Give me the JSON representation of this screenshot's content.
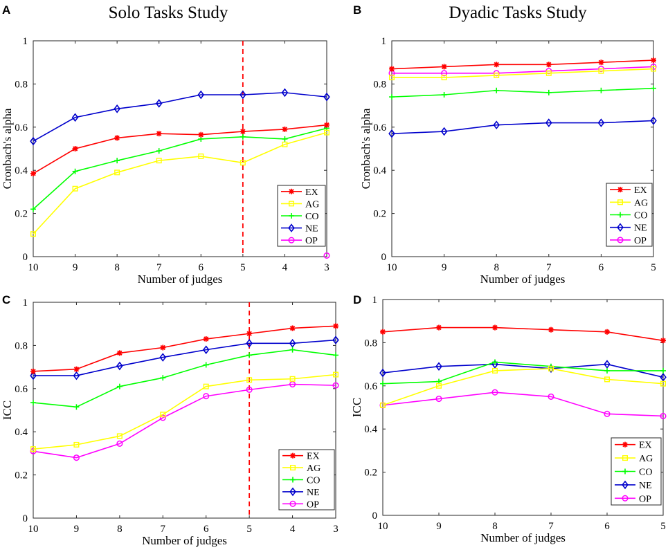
{
  "figure": {
    "col_titles": [
      "Solo Tasks Study",
      "Dyadic Tasks Study"
    ]
  },
  "series_colors": {
    "EX": "#ff0000",
    "AG": "#ffff00",
    "CO": "#00ff00",
    "NE": "#0000cc",
    "OP": "#ff00ff"
  },
  "chart_data": [
    {
      "panel": "A",
      "type": "line",
      "title": "Solo Tasks Study",
      "xlabel": "Number of judges",
      "ylabel": "Cronbach's alpha",
      "categories": [
        "10",
        "9",
        "8",
        "7",
        "6",
        "5",
        "4",
        "3"
      ],
      "ylim": [
        0,
        1
      ],
      "yticks": [
        "0",
        "0.2",
        "0.4",
        "0.6",
        "0.8",
        "1"
      ],
      "reference_line_at": "5",
      "legend_position": "bottom-right",
      "series": [
        {
          "name": "EX",
          "marker": "asterisk",
          "values": [
            0.385,
            0.5,
            0.55,
            0.57,
            0.565,
            0.58,
            0.59,
            0.61
          ]
        },
        {
          "name": "AG",
          "marker": "square",
          "values": [
            0.105,
            0.315,
            0.39,
            0.445,
            0.465,
            0.435,
            0.52,
            0.575
          ]
        },
        {
          "name": "CO",
          "marker": "plus",
          "values": [
            0.22,
            0.395,
            0.445,
            0.49,
            0.545,
            0.555,
            0.545,
            0.595
          ]
        },
        {
          "name": "NE",
          "marker": "diamond",
          "values": [
            0.535,
            0.645,
            0.685,
            0.71,
            0.75,
            0.75,
            0.76,
            0.74
          ]
        },
        {
          "name": "OP",
          "marker": "circle",
          "values": [
            null,
            null,
            null,
            null,
            null,
            null,
            null,
            0.005
          ]
        }
      ]
    },
    {
      "panel": "B",
      "type": "line",
      "title": "Dyadic Tasks Study",
      "xlabel": "Number of judges",
      "ylabel": "Cronbach's alpha",
      "categories": [
        "10",
        "9",
        "8",
        "7",
        "6",
        "5"
      ],
      "ylim": [
        0,
        1
      ],
      "yticks": [
        "0",
        "0.2",
        "0.4",
        "0.6",
        "0.8",
        "1"
      ],
      "reference_line_at": null,
      "legend_position": "bottom-right",
      "series": [
        {
          "name": "EX",
          "marker": "asterisk",
          "values": [
            0.87,
            0.88,
            0.89,
            0.89,
            0.9,
            0.91
          ]
        },
        {
          "name": "AG",
          "marker": "square",
          "values": [
            0.83,
            0.83,
            0.84,
            0.85,
            0.86,
            0.87
          ]
        },
        {
          "name": "CO",
          "marker": "plus",
          "values": [
            0.74,
            0.75,
            0.77,
            0.76,
            0.77,
            0.78
          ]
        },
        {
          "name": "NE",
          "marker": "diamond",
          "values": [
            0.57,
            0.58,
            0.61,
            0.62,
            0.62,
            0.63
          ]
        },
        {
          "name": "OP",
          "marker": "circle",
          "values": [
            0.85,
            0.85,
            0.85,
            0.86,
            0.87,
            0.88
          ]
        }
      ]
    },
    {
      "panel": "C",
      "type": "line",
      "title": "",
      "xlabel": "Number of judges",
      "ylabel": "ICC",
      "categories": [
        "10",
        "9",
        "8",
        "7",
        "6",
        "5",
        "4",
        "3"
      ],
      "ylim": [
        0,
        1
      ],
      "yticks": [
        "0",
        "0.2",
        "0.4",
        "0.6",
        "0.8",
        "1"
      ],
      "reference_line_at": "5",
      "legend_position": "bottom-right",
      "series": [
        {
          "name": "EX",
          "marker": "asterisk",
          "values": [
            0.68,
            0.69,
            0.765,
            0.79,
            0.83,
            0.855,
            0.88,
            0.89
          ]
        },
        {
          "name": "AG",
          "marker": "square",
          "values": [
            0.32,
            0.34,
            0.38,
            0.48,
            0.61,
            0.64,
            0.645,
            0.665
          ]
        },
        {
          "name": "CO",
          "marker": "plus",
          "values": [
            0.535,
            0.515,
            0.61,
            0.65,
            0.71,
            0.755,
            0.78,
            0.755
          ]
        },
        {
          "name": "NE",
          "marker": "diamond",
          "values": [
            0.66,
            0.66,
            0.705,
            0.745,
            0.78,
            0.81,
            0.81,
            0.825
          ]
        },
        {
          "name": "OP",
          "marker": "circle",
          "values": [
            0.31,
            0.28,
            0.345,
            0.465,
            0.565,
            0.595,
            0.62,
            0.615
          ]
        }
      ]
    },
    {
      "panel": "D",
      "type": "line",
      "title": "",
      "xlabel": "Number of judges",
      "ylabel": "ICC",
      "categories": [
        "10",
        "9",
        "8",
        "7",
        "6",
        "5"
      ],
      "ylim": [
        0,
        1
      ],
      "yticks": [
        "0",
        "0.2",
        "0.4",
        "0.6",
        "0.8",
        "1"
      ],
      "reference_line_at": null,
      "legend_position": "bottom-right",
      "series": [
        {
          "name": "EX",
          "marker": "asterisk",
          "values": [
            0.85,
            0.87,
            0.87,
            0.86,
            0.85,
            0.81
          ]
        },
        {
          "name": "AG",
          "marker": "square",
          "values": [
            0.51,
            0.6,
            0.67,
            0.68,
            0.63,
            0.61
          ]
        },
        {
          "name": "CO",
          "marker": "plus",
          "values": [
            0.61,
            0.62,
            0.71,
            0.69,
            0.67,
            0.67
          ]
        },
        {
          "name": "NE",
          "marker": "diamond",
          "values": [
            0.66,
            0.69,
            0.7,
            0.68,
            0.7,
            0.64
          ]
        },
        {
          "name": "OP",
          "marker": "circle",
          "values": [
            0.51,
            0.54,
            0.57,
            0.55,
            0.47,
            0.46
          ]
        }
      ]
    }
  ]
}
